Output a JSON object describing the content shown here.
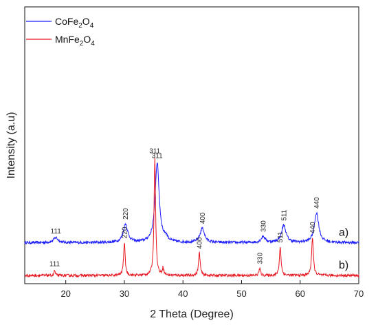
{
  "chart_data": {
    "type": "line",
    "xlabel": "2 Theta (Degree)",
    "ylabel": "Intensity (a.u)",
    "xlim": [
      13,
      70
    ],
    "xticks": [
      20,
      30,
      40,
      50,
      60,
      70
    ],
    "y_ticks_shown": false,
    "grid": false,
    "legend_placement": "top-left",
    "series": [
      {
        "key": "co",
        "name_parts": [
          "CoFe",
          "2",
          "O",
          "4"
        ],
        "color": "#1a1aff",
        "tag": "a)",
        "baseline": 40,
        "peaks": [
          {
            "x": 18.3,
            "h": 5,
            "w": 0.45,
            "label": "111"
          },
          {
            "x": 30.2,
            "h": 18,
            "w": 0.45,
            "label": "220"
          },
          {
            "x": 35.6,
            "h": 78,
            "w": 0.42,
            "label": "311"
          },
          {
            "x": 37.1,
            "h": 4,
            "w": 0.35,
            "label": ""
          },
          {
            "x": 43.3,
            "h": 14,
            "w": 0.45,
            "label": "400"
          },
          {
            "x": 53.7,
            "h": 6,
            "w": 0.4,
            "label": "330"
          },
          {
            "x": 57.2,
            "h": 17,
            "w": 0.45,
            "label": "511"
          },
          {
            "x": 62.8,
            "h": 29,
            "w": 0.45,
            "label": "440"
          }
        ]
      },
      {
        "key": "mn",
        "name_parts": [
          "MnFe",
          "2",
          "O",
          "4"
        ],
        "color": "#e8141e",
        "tag": "b)",
        "baseline": 8,
        "peaks": [
          {
            "x": 18.1,
            "h": 5,
            "w": 0.12,
            "label": "111"
          },
          {
            "x": 30.0,
            "h": 32,
            "w": 0.16,
            "label": "220"
          },
          {
            "x": 35.2,
            "h": 115,
            "w": 0.16,
            "label": "311"
          },
          {
            "x": 36.6,
            "h": 7,
            "w": 0.15,
            "label": ""
          },
          {
            "x": 42.8,
            "h": 22,
            "w": 0.17,
            "label": "400"
          },
          {
            "x": 53.1,
            "h": 7,
            "w": 0.15,
            "label": "330"
          },
          {
            "x": 56.6,
            "h": 28,
            "w": 0.17,
            "label": "511"
          },
          {
            "x": 62.1,
            "h": 37,
            "w": 0.18,
            "label": "440"
          }
        ]
      }
    ]
  }
}
